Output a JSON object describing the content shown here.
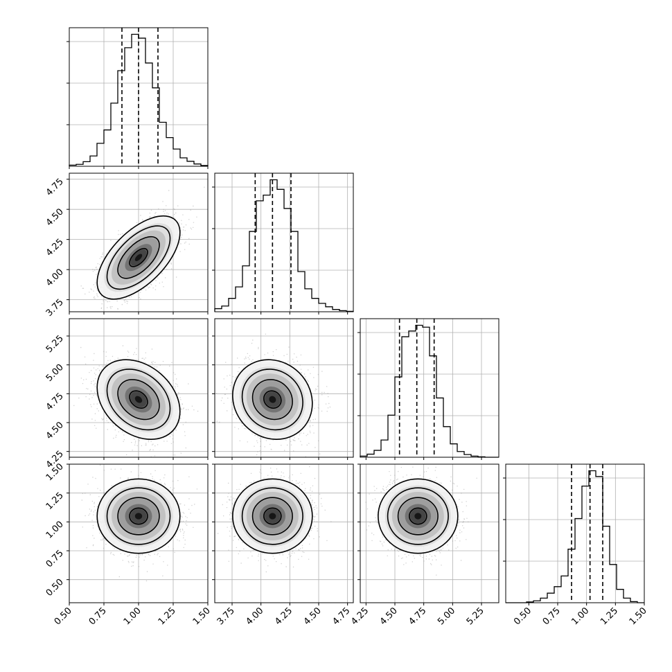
{
  "chart_data": {
    "type": "corner",
    "parameters": 4,
    "grid": true,
    "diagonal": [
      {
        "type": "histogram",
        "xlim": [
          0.5,
          1.5
        ],
        "bin_edges": [
          0.5,
          0.55,
          0.6,
          0.65,
          0.7,
          0.75,
          0.8,
          0.85,
          0.9,
          0.95,
          1.0,
          1.05,
          1.1,
          1.15,
          1.2,
          1.25,
          1.3,
          1.35,
          1.4,
          1.45,
          1.5
        ],
        "counts": [
          3,
          5,
          12,
          27,
          60,
          95,
          165,
          250,
          310,
          345,
          335,
          270,
          205,
          115,
          75,
          45,
          22,
          13,
          6,
          2
        ],
        "quantiles": [
          0.88,
          1.0,
          1.14
        ]
      },
      {
        "type": "histogram",
        "xlim": [
          3.6,
          4.8
        ],
        "bin_edges": [
          3.6,
          3.66,
          3.72,
          3.78,
          3.84,
          3.9,
          3.96,
          4.02,
          4.08,
          4.14,
          4.2,
          4.26,
          4.32,
          4.38,
          4.44,
          4.5,
          4.56,
          4.62,
          4.68,
          4.74,
          4.8
        ],
        "counts": [
          8,
          15,
          35,
          65,
          120,
          210,
          290,
          305,
          345,
          320,
          270,
          210,
          105,
          60,
          35,
          22,
          13,
          6,
          3,
          1
        ],
        "quantiles": [
          3.95,
          4.1,
          4.26
        ]
      },
      {
        "type": "histogram",
        "xlim": [
          4.2,
          5.4
        ],
        "bin_edges": [
          4.2,
          4.26,
          4.32,
          4.38,
          4.44,
          4.5,
          4.56,
          4.62,
          4.68,
          4.74,
          4.8,
          4.86,
          4.92,
          4.98,
          5.04,
          5.1,
          5.16,
          5.22,
          5.28,
          5.34,
          5.4
        ],
        "counts": [
          3,
          8,
          18,
          45,
          110,
          210,
          315,
          330,
          345,
          340,
          265,
          155,
          80,
          35,
          15,
          7,
          3,
          1,
          0,
          0
        ],
        "quantiles": [
          4.54,
          4.69,
          4.84
        ]
      },
      {
        "type": "histogram",
        "xlim": [
          0.3,
          1.5
        ],
        "bin_edges": [
          0.3,
          0.36,
          0.42,
          0.48,
          0.54,
          0.6,
          0.66,
          0.72,
          0.78,
          0.84,
          0.9,
          0.96,
          1.02,
          1.08,
          1.14,
          1.2,
          1.26,
          1.32,
          1.38,
          1.44,
          1.5
        ],
        "counts": [
          0,
          0,
          0,
          2,
          5,
          12,
          25,
          42,
          70,
          140,
          220,
          305,
          345,
          330,
          200,
          100,
          35,
          12,
          3,
          0
        ],
        "quantiles": [
          0.87,
          1.03,
          1.14
        ]
      }
    ],
    "pairs": [
      {
        "row": 1,
        "col": 0,
        "xlim": [
          0.5,
          1.5
        ],
        "ylim": [
          3.65,
          4.8
        ],
        "mean": [
          1.0,
          4.1
        ],
        "sd": [
          0.13,
          0.15
        ],
        "rho": 0.6
      },
      {
        "row": 2,
        "col": 0,
        "xlim": [
          0.5,
          1.5
        ],
        "ylim": [
          4.2,
          5.4
        ],
        "mean": [
          1.0,
          4.7
        ],
        "sd": [
          0.13,
          0.15
        ],
        "rho": -0.3
      },
      {
        "row": 2,
        "col": 1,
        "xlim": [
          3.6,
          4.8
        ],
        "ylim": [
          4.2,
          5.4
        ],
        "mean": [
          4.1,
          4.7
        ],
        "sd": [
          0.15,
          0.15
        ],
        "rho": -0.1
      },
      {
        "row": 3,
        "col": 0,
        "xlim": [
          0.5,
          1.5
        ],
        "ylim": [
          0.3,
          1.5
        ],
        "mean": [
          1.0,
          1.05
        ],
        "sd": [
          0.13,
          0.14
        ],
        "rho": 0.0
      },
      {
        "row": 3,
        "col": 1,
        "xlim": [
          3.6,
          4.8
        ],
        "ylim": [
          0.3,
          1.5
        ],
        "mean": [
          4.1,
          1.05
        ],
        "sd": [
          0.15,
          0.14
        ],
        "rho": 0.0
      },
      {
        "row": 3,
        "col": 2,
        "xlim": [
          4.2,
          5.4
        ],
        "ylim": [
          0.3,
          1.5
        ],
        "mean": [
          4.7,
          1.05
        ],
        "sd": [
          0.15,
          0.14
        ],
        "rho": 0.0
      }
    ],
    "y_ticks": {
      "1": [
        "3.75",
        "4.00",
        "4.25",
        "4.50",
        "4.75"
      ],
      "2": [
        "4.25",
        "4.50",
        "4.75",
        "5.00",
        "5.25"
      ],
      "3": [
        "0.50",
        "0.75",
        "1.00",
        "1.25",
        "1.50"
      ]
    },
    "x_ticks": {
      "0": [
        "0.50",
        "0.75",
        "1.00",
        "1.25",
        "1.50"
      ],
      "1": [
        "3.75",
        "4.00",
        "4.25",
        "4.50",
        "4.75"
      ],
      "2": [
        "4.25",
        "4.50",
        "4.75",
        "5.00",
        "5.25"
      ],
      "3": [
        "0.50",
        "0.75",
        "1.00",
        "1.25",
        "1.50"
      ]
    },
    "xlabels": [
      "",
      "",
      "",
      ""
    ],
    "ylabels": [
      "",
      "",
      "",
      ""
    ],
    "title": ""
  }
}
